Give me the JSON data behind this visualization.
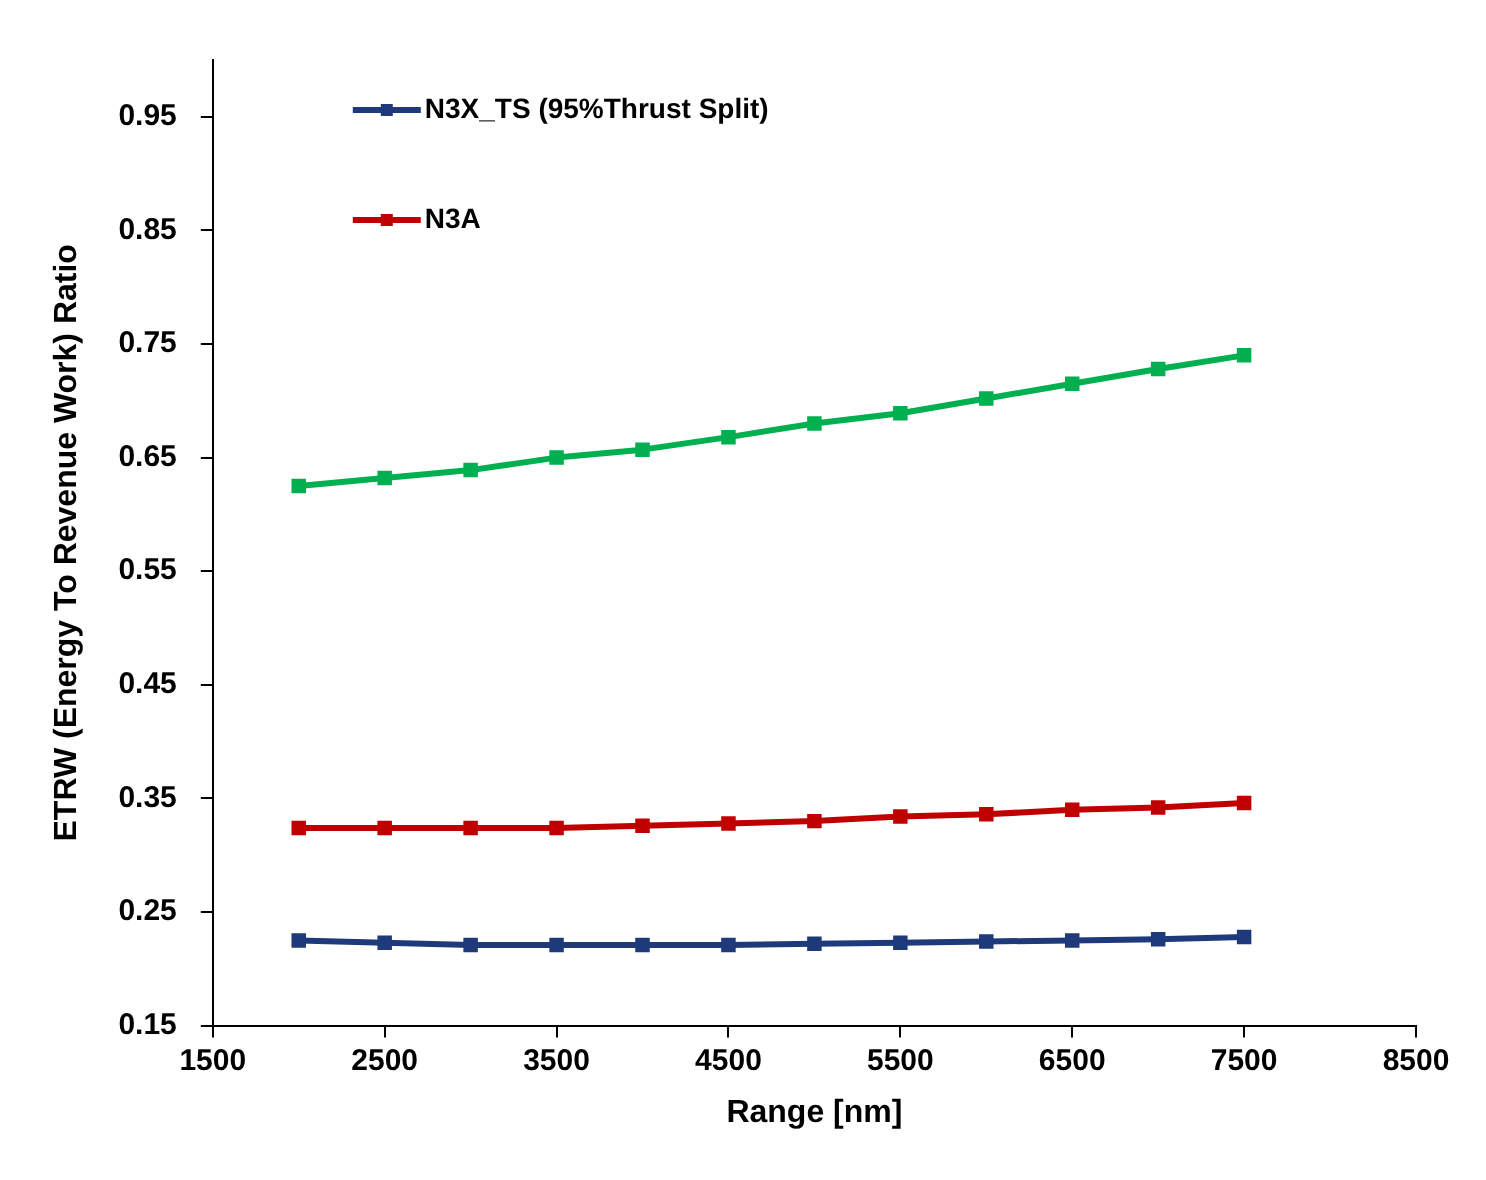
{
  "chart_data": {
    "type": "line",
    "xlabel": "Range [nm]",
    "ylabel": "ETRW (Energy To Revenue Work) Ratio",
    "x": [
      2000,
      2500,
      3000,
      3500,
      4000,
      4500,
      5000,
      5500,
      6000,
      6500,
      7000,
      7500
    ],
    "xlim": [
      1500,
      8500
    ],
    "xticks": [
      1500,
      2500,
      3500,
      4500,
      5500,
      6500,
      7500,
      8500
    ],
    "ylim": [
      0.15,
      1.0
    ],
    "yticks": [
      0.15,
      0.25,
      0.35,
      0.45,
      0.55,
      0.65,
      0.75,
      0.85,
      0.95
    ],
    "grid": false,
    "legend": "top left",
    "marker": "square",
    "line_style": "solid",
    "series": [
      {
        "name": "N3X_TS (95%Thrust Split)",
        "color": "#1f3a7a",
        "values": [
          0.225,
          0.223,
          0.221,
          0.221,
          0.221,
          0.221,
          0.222,
          0.223,
          0.224,
          0.225,
          0.226,
          0.228
        ]
      },
      {
        "name": "N3A",
        "color": "#c00000",
        "values": [
          0.324,
          0.324,
          0.324,
          0.324,
          0.326,
          0.328,
          0.33,
          0.334,
          0.336,
          0.34,
          0.342,
          0.346
        ]
      },
      {
        "color": "#00b050",
        "values": [
          0.625,
          0.632,
          0.639,
          0.65,
          0.657,
          0.668,
          0.68,
          0.689,
          0.702,
          0.715,
          0.728,
          0.74
        ]
      }
    ]
  }
}
